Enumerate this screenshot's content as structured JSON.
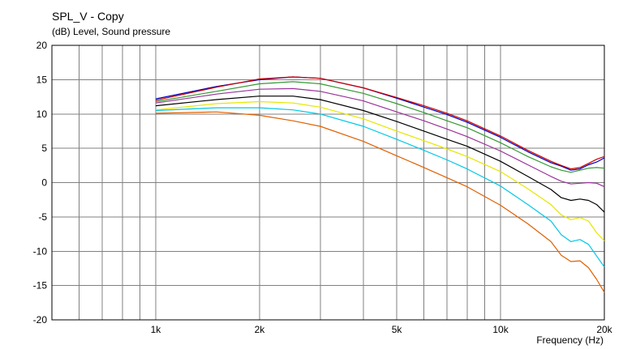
{
  "chart_data": {
    "type": "line",
    "title": "SPL_V - Copy",
    "ylabel": "(dB)  Level, Sound pressure",
    "xlabel": "Frequency  (Hz)",
    "x_scale": "log",
    "xlim": [
      500,
      20000
    ],
    "ylim": [
      -20,
      20
    ],
    "y_ticks": [
      20,
      15,
      10,
      5,
      0,
      -5,
      -10,
      -15,
      -20
    ],
    "x_ticks": [
      {
        "v": 1000,
        "label": "1k"
      },
      {
        "v": 2000,
        "label": "2k"
      },
      {
        "v": 5000,
        "label": "5k"
      },
      {
        "v": 10000,
        "label": "10k"
      },
      {
        "v": 20000,
        "label": "20k"
      }
    ],
    "x_minor_gridlines": [
      600,
      700,
      800,
      900,
      3000,
      4000,
      6000,
      7000,
      8000,
      9000
    ],
    "grid": true,
    "x": [
      1000,
      1500,
      2000,
      2500,
      3000,
      4000,
      5000,
      6000,
      7000,
      8000,
      10000,
      12000,
      14000,
      15000,
      16000,
      17000,
      18000,
      19000,
      20000
    ],
    "series": [
      {
        "color": "#0000c0",
        "values": [
          12.2,
          14.0,
          15.0,
          15.4,
          15.2,
          13.8,
          12.3,
          11.0,
          9.9,
          8.8,
          6.6,
          4.5,
          2.9,
          2.4,
          1.8,
          2.0,
          2.6,
          3.0,
          3.6
        ]
      },
      {
        "color": "#cc0000",
        "values": [
          12.0,
          13.9,
          15.1,
          15.4,
          15.2,
          13.8,
          12.4,
          11.2,
          10.1,
          9.0,
          6.8,
          4.7,
          3.1,
          2.5,
          2.0,
          2.2,
          2.8,
          3.4,
          3.8
        ]
      },
      {
        "color": "#339933",
        "values": [
          11.8,
          13.3,
          14.4,
          14.7,
          14.4,
          13.0,
          11.5,
          10.2,
          9.0,
          8.0,
          5.8,
          3.8,
          2.3,
          1.8,
          1.5,
          1.8,
          2.1,
          2.2,
          2.1
        ]
      },
      {
        "color": "#993399",
        "values": [
          11.6,
          12.9,
          13.6,
          13.7,
          13.3,
          11.9,
          10.3,
          9.0,
          7.8,
          6.7,
          4.6,
          2.6,
          0.9,
          0.2,
          -0.2,
          -0.1,
          0.0,
          -0.1,
          -0.6
        ]
      },
      {
        "color": "#000000",
        "values": [
          11.2,
          12.1,
          12.6,
          12.6,
          12.1,
          10.5,
          8.9,
          7.5,
          6.3,
          5.3,
          3.1,
          0.9,
          -1.0,
          -2.2,
          -2.6,
          -2.4,
          -2.6,
          -3.2,
          -4.3
        ]
      },
      {
        "color": "#e6e600",
        "values": [
          10.6,
          11.5,
          11.8,
          11.6,
          11.0,
          9.3,
          7.5,
          6.1,
          4.9,
          3.8,
          1.6,
          -0.9,
          -3.2,
          -4.7,
          -5.4,
          -5.1,
          -5.6,
          -7.3,
          -8.5
        ]
      },
      {
        "color": "#00c8e6",
        "values": [
          10.5,
          10.9,
          10.9,
          10.6,
          10.0,
          8.2,
          6.3,
          4.7,
          3.3,
          2.0,
          -0.5,
          -3.2,
          -5.6,
          -7.6,
          -8.6,
          -8.3,
          -9.0,
          -10.7,
          -12.3
        ]
      },
      {
        "color": "#e06000",
        "values": [
          10.1,
          10.3,
          9.8,
          9.0,
          8.2,
          6.0,
          3.9,
          2.2,
          0.7,
          -0.6,
          -3.3,
          -6.0,
          -8.6,
          -10.6,
          -11.5,
          -11.4,
          -12.4,
          -14.1,
          -16.0
        ]
      }
    ]
  }
}
